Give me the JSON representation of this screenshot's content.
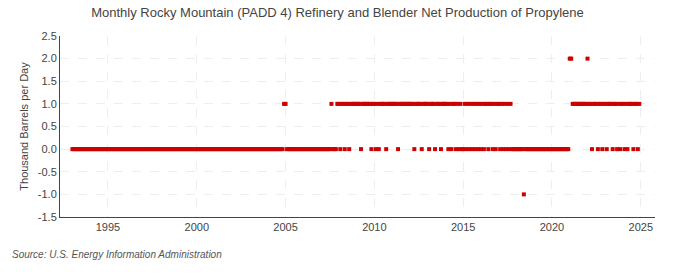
{
  "chart_data": {
    "type": "scatter",
    "title": "Monthly Rocky Mountain (PADD 4) Refinery and Blender Net Production of Propylene",
    "ylabel": "Thousand Barrels per Day",
    "source": "Source: U.S. Energy Information Administration",
    "color": "#cc0000",
    "marker": "square",
    "grid": true,
    "xlim": [
      1992.3,
      2025.8
    ],
    "ylim": [
      -1.5,
      2.5
    ],
    "xticks": [
      1995,
      2000,
      2005,
      2010,
      2015,
      2020,
      2025
    ],
    "yticks": [
      -1.5,
      {
        "value": -1.0,
        "label": "-1.0"
      },
      -0.5,
      {
        "value": 0.0,
        "label": "0.0"
      },
      0.5,
      {
        "value": 1.0,
        "label": "1.0"
      },
      1.5,
      {
        "value": 2.0,
        "label": "2.0"
      },
      2.5
    ],
    "x": [
      1993,
      1993.0833333333333,
      1993.1666666666667,
      1993.25,
      1993.3333333333333,
      1993.4166666666667,
      1993.5,
      1993.5833333333333,
      1993.6666666666667,
      1993.75,
      1993.8333333333333,
      1993.9166666666667,
      1994,
      1994.0833333333333,
      1994.1666666666667,
      1994.25,
      1994.3333333333333,
      1994.4166666666667,
      1994.5,
      1994.5833333333333,
      1994.6666666666667,
      1994.75,
      1994.8333333333333,
      1994.9166666666667,
      1995,
      1995.0833333333333,
      1995.1666666666667,
      1995.25,
      1995.3333333333333,
      1995.4166666666667,
      1995.5,
      1995.5833333333333,
      1995.6666666666667,
      1995.75,
      1995.8333333333333,
      1995.9166666666667,
      1996,
      1996.0833333333333,
      1996.1666666666667,
      1996.25,
      1996.3333333333333,
      1996.4166666666667,
      1996.5,
      1996.5833333333333,
      1996.6666666666667,
      1996.75,
      1996.8333333333333,
      1996.9166666666667,
      1997,
      1997.0833333333333,
      1997.1666666666667,
      1997.25,
      1997.3333333333333,
      1997.4166666666667,
      1997.5,
      1997.5833333333333,
      1997.6666666666667,
      1997.75,
      1997.8333333333333,
      1997.9166666666667,
      1998,
      1998.0833333333333,
      1998.1666666666667,
      1998.25,
      1998.3333333333333,
      1998.4166666666667,
      1998.5,
      1998.5833333333333,
      1998.6666666666667,
      1998.75,
      1998.8333333333333,
      1998.9166666666667,
      1999,
      1999.0833333333333,
      1999.1666666666667,
      1999.25,
      1999.3333333333333,
      1999.4166666666667,
      1999.5,
      1999.5833333333333,
      1999.6666666666667,
      1999.75,
      1999.8333333333333,
      1999.9166666666667,
      2000,
      2000.0833333333333,
      2000.1666666666667,
      2000.25,
      2000.3333333333333,
      2000.4166666666667,
      2000.5,
      2000.5833333333333,
      2000.6666666666667,
      2000.75,
      2000.8333333333333,
      2000.9166666666667,
      2001,
      2001.0833333333333,
      2001.1666666666667,
      2001.25,
      2001.3333333333333,
      2001.4166666666667,
      2001.5,
      2001.5833333333333,
      2001.6666666666667,
      2001.75,
      2001.8333333333333,
      2001.9166666666667,
      2002,
      2002.0833333333333,
      2002.1666666666667,
      2002.25,
      2002.3333333333333,
      2002.4166666666667,
      2002.5,
      2002.5833333333333,
      2002.6666666666667,
      2002.75,
      2002.8333333333333,
      2002.9166666666667,
      2003,
      2003.0833333333333,
      2003.1666666666667,
      2003.25,
      2003.3333333333333,
      2003.4166666666667,
      2003.5,
      2003.5833333333333,
      2003.6666666666667,
      2003.75,
      2003.8333333333333,
      2003.9166666666667,
      2004,
      2004.0833333333333,
      2004.1666666666667,
      2004.25,
      2004.3333333333333,
      2004.4166666666667,
      2004.5,
      2004.5833333333333,
      2004.6666666666667,
      2004.75,
      2004.8333333333333,
      2004.9166666666667,
      2005,
      2005.0833333333333,
      2005.1666666666667,
      2005.25,
      2005.3333333333333,
      2005.4166666666667,
      2005.5,
      2005.5833333333333,
      2005.6666666666667,
      2005.75,
      2005.8333333333333,
      2005.9166666666667,
      2006,
      2006.0833333333333,
      2006.1666666666667,
      2006.25,
      2006.3333333333333,
      2006.4166666666667,
      2006.5,
      2006.5833333333333,
      2006.6666666666667,
      2006.75,
      2006.8333333333333,
      2006.9166666666667,
      2007,
      2007.0833333333333,
      2007.1666666666667,
      2007.25,
      2007.3333333333333,
      2007.4166666666667,
      2007.5,
      2007.5833333333333,
      2007.6666666666667,
      2007.75,
      2007.8333333333333,
      2007.9166666666667,
      2008,
      2008.0833333333333,
      2008.1666666666667,
      2008.25,
      2008.3333333333333,
      2008.4166666666667,
      2008.5,
      2008.5833333333333,
      2008.6666666666667,
      2008.75,
      2008.8333333333333,
      2008.9166666666667,
      2009,
      2009.0833333333333,
      2009.1666666666667,
      2009.25,
      2009.3333333333333,
      2009.4166666666667,
      2009.5,
      2009.5833333333333,
      2009.6666666666667,
      2009.75,
      2009.8333333333333,
      2009.9166666666667,
      2010,
      2010.0833333333333,
      2010.1666666666667,
      2010.25,
      2010.3333333333333,
      2010.4166666666667,
      2010.5,
      2010.5833333333333,
      2010.6666666666667,
      2010.75,
      2010.8333333333333,
      2010.9166666666667,
      2011,
      2011.0833333333333,
      2011.1666666666667,
      2011.25,
      2011.3333333333333,
      2011.4166666666667,
      2011.5,
      2011.5833333333333,
      2011.6666666666667,
      2011.75,
      2011.8333333333333,
      2011.9166666666667,
      2012,
      2012.0833333333333,
      2012.1666666666667,
      2012.25,
      2012.3333333333333,
      2012.4166666666667,
      2012.5,
      2012.5833333333333,
      2012.6666666666667,
      2012.75,
      2012.8333333333333,
      2012.9166666666667,
      2013,
      2013.0833333333333,
      2013.1666666666667,
      2013.25,
      2013.3333333333333,
      2013.4166666666667,
      2013.5,
      2013.5833333333333,
      2013.6666666666667,
      2013.75,
      2013.8333333333333,
      2013.9166666666667,
      2014,
      2014.0833333333333,
      2014.1666666666667,
      2014.25,
      2014.3333333333333,
      2014.4166666666667,
      2014.5,
      2014.5833333333333,
      2014.6666666666667,
      2014.75,
      2014.8333333333333,
      2014.9166666666667,
      2015,
      2015.0833333333333,
      2015.1666666666667,
      2015.25,
      2015.3333333333333,
      2015.4166666666667,
      2015.5,
      2015.5833333333333,
      2015.6666666666667,
      2015.75,
      2015.8333333333333,
      2015.9166666666667,
      2016,
      2016.0833333333333,
      2016.1666666666667,
      2016.25,
      2016.3333333333333,
      2016.4166666666667,
      2016.5,
      2016.5833333333333,
      2016.6666666666667,
      2016.75,
      2016.8333333333333,
      2016.9166666666667,
      2017,
      2017.0833333333333,
      2017.1666666666667,
      2017.25,
      2017.3333333333333,
      2017.4166666666667,
      2017.5,
      2017.5833333333333,
      2017.6666666666667,
      2017.75,
      2017.8333333333333,
      2017.9166666666667,
      2018,
      2018.0833333333333,
      2018.1666666666667,
      2018.25,
      2018.3333333333333,
      2018.4166666666667,
      2018.5,
      2018.5833333333333,
      2018.6666666666667,
      2018.75,
      2018.8333333333333,
      2018.9166666666667,
      2019,
      2019.0833333333333,
      2019.1666666666667,
      2019.25,
      2019.3333333333333,
      2019.4166666666667,
      2019.5,
      2019.5833333333333,
      2019.6666666666667,
      2019.75,
      2019.8333333333333,
      2019.9166666666667,
      2020,
      2020.0833333333333,
      2020.1666666666667,
      2020.25,
      2020.3333333333333,
      2020.4166666666667,
      2020.5,
      2020.5833333333333,
      2020.6666666666667,
      2020.75,
      2020.8333333333333,
      2020.9166666666667,
      2021,
      2021.0833333333333,
      2021.1666666666667,
      2021.25,
      2021.3333333333333,
      2021.4166666666667,
      2021.5,
      2021.5833333333333,
      2021.6666666666667,
      2021.75,
      2021.8333333333333,
      2021.9166666666667,
      2022,
      2022.0833333333333,
      2022.1666666666667,
      2022.25,
      2022.3333333333333,
      2022.4166666666667,
      2022.5,
      2022.5833333333333,
      2022.6666666666667,
      2022.75,
      2022.8333333333333,
      2022.9166666666667,
      2023,
      2023.0833333333333,
      2023.1666666666667,
      2023.25,
      2023.3333333333333,
      2023.4166666666667,
      2023.5,
      2023.5833333333333,
      2023.6666666666667,
      2023.75,
      2023.8333333333333,
      2023.9166666666667,
      2024,
      2024.0833333333333,
      2024.1666666666667,
      2024.25,
      2024.3333333333333,
      2024.4166666666667,
      2024.5,
      2024.5833333333333,
      2024.6666666666667,
      2024.75,
      2024.8333333333333,
      2024.9166666666667
    ],
    "values": [
      0,
      0,
      0,
      0,
      0,
      0,
      0,
      0,
      0,
      0,
      0,
      0,
      0,
      0,
      0,
      0,
      0,
      0,
      0,
      0,
      0,
      0,
      0,
      0,
      0,
      0,
      0,
      0,
      0,
      0,
      0,
      0,
      0,
      0,
      0,
      0,
      0,
      0,
      0,
      0,
      0,
      0,
      0,
      0,
      0,
      0,
      0,
      0,
      0,
      0,
      0,
      0,
      0,
      0,
      0,
      0,
      0,
      0,
      0,
      0,
      0,
      0,
      0,
      0,
      0,
      0,
      0,
      0,
      0,
      0,
      0,
      0,
      0,
      0,
      0,
      0,
      0,
      0,
      0,
      0,
      0,
      0,
      0,
      0,
      0,
      0,
      0,
      0,
      0,
      0,
      0,
      0,
      0,
      0,
      0,
      0,
      0,
      0,
      0,
      0,
      0,
      0,
      0,
      0,
      0,
      0,
      0,
      0,
      0,
      0,
      0,
      0,
      0,
      0,
      0,
      0,
      0,
      0,
      0,
      0,
      0,
      0,
      0,
      0,
      0,
      0,
      0,
      0,
      0,
      0,
      0,
      0,
      0,
      0,
      0,
      0,
      0,
      0,
      0,
      0,
      0,
      0,
      0,
      1,
      1,
      0,
      0,
      0,
      0,
      0,
      0,
      0,
      0,
      0,
      0,
      0,
      0,
      0,
      0,
      0,
      0,
      0,
      0,
      0,
      0,
      0,
      0,
      0,
      0,
      0,
      0,
      0,
      0,
      0,
      0,
      1,
      0,
      0,
      0,
      1,
      1,
      0,
      1,
      1,
      0,
      1,
      1,
      0,
      1,
      1,
      1,
      1,
      1,
      1,
      1,
      0,
      1,
      1,
      1,
      1,
      1,
      1,
      0,
      1,
      1,
      0,
      1,
      0,
      1,
      1,
      1,
      1,
      0,
      1,
      1,
      1,
      1,
      1,
      1,
      1,
      0,
      1,
      1,
      1,
      1,
      1,
      1,
      1,
      1,
      1,
      1,
      0,
      1,
      1,
      1,
      1,
      0,
      1,
      1,
      1,
      1,
      0,
      1,
      1,
      1,
      0,
      1,
      1,
      1,
      0,
      1,
      1,
      1,
      1,
      0,
      1,
      0,
      1,
      1,
      0,
      1,
      0,
      1,
      0,
      0,
      1,
      0,
      1,
      0,
      1,
      0,
      1,
      0,
      1,
      0,
      1,
      0,
      1,
      0,
      1,
      1,
      0,
      1,
      1,
      0,
      1,
      0,
      1,
      1,
      0,
      1,
      0,
      1,
      0,
      1,
      0,
      1,
      0,
      0,
      0,
      0,
      0,
      0,
      0,
      0,
      -1,
      0,
      0,
      0,
      0,
      0,
      0,
      0,
      0,
      0,
      0,
      0,
      0,
      0,
      0,
      0,
      0,
      0,
      0,
      0,
      0,
      0,
      0,
      0,
      0,
      0,
      0,
      0,
      0,
      0,
      0,
      2,
      2,
      1,
      1,
      1,
      1,
      1,
      1,
      1,
      1,
      1,
      1,
      2,
      1,
      1,
      0,
      1,
      1,
      1,
      0,
      1,
      1,
      0,
      1,
      1,
      0,
      1,
      1,
      1,
      0,
      1,
      1,
      0,
      1,
      0,
      1,
      1,
      0,
      1,
      0,
      1,
      1,
      1,
      0,
      1,
      1,
      0,
      1
    ]
  }
}
